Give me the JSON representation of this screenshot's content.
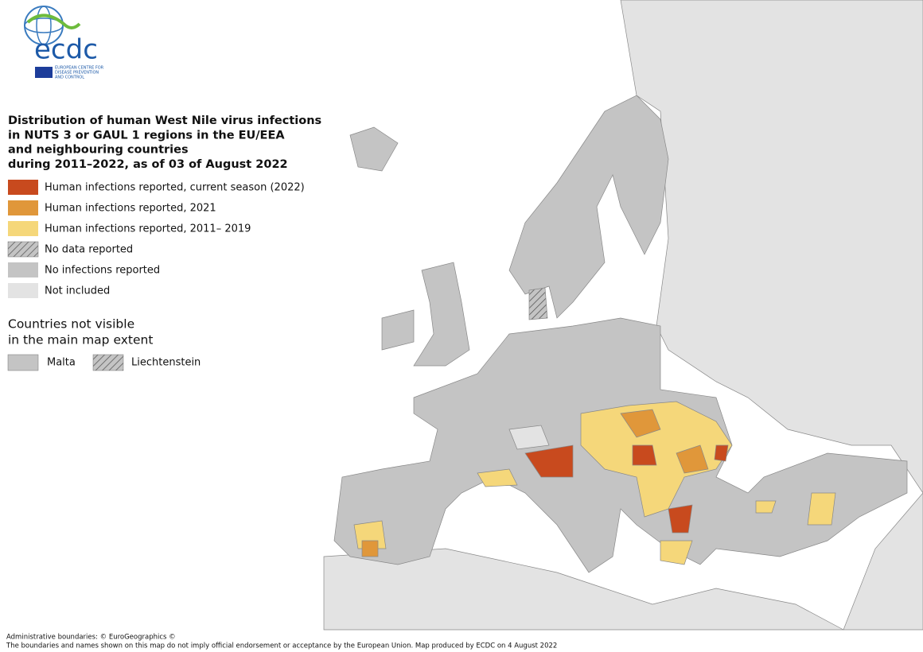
{
  "logo": {
    "name": "ecdc",
    "subtitle": [
      "EUROPEAN CENTRE FOR",
      "DISEASE PREVENTION",
      "AND CONTROL"
    ]
  },
  "title": [
    "Distribution of human West Nile virus infections",
    "in NUTS 3 or GAUL 1 regions in the EU/EEA",
    "and neighbouring countries",
    "during 2011–2022, as of 03 of August 2022"
  ],
  "legend": [
    "Human infections reported, current season (2022)",
    "Human infections reported, 2021",
    "Human infections reported, 2011– 2019",
    "No data reported",
    "No infections reported",
    "Not included"
  ],
  "inset": {
    "title": [
      "Countries not visible",
      "in the main map extent"
    ],
    "items": [
      "Malta",
      "Liechtenstein"
    ]
  },
  "footer": [
    "Administrative boundaries: © EuroGeographics ©",
    "The boundaries and names shown on this map do not imply official endorsement or acceptance by the European Union. Map produced by ECDC on 4 August 2022"
  ]
}
